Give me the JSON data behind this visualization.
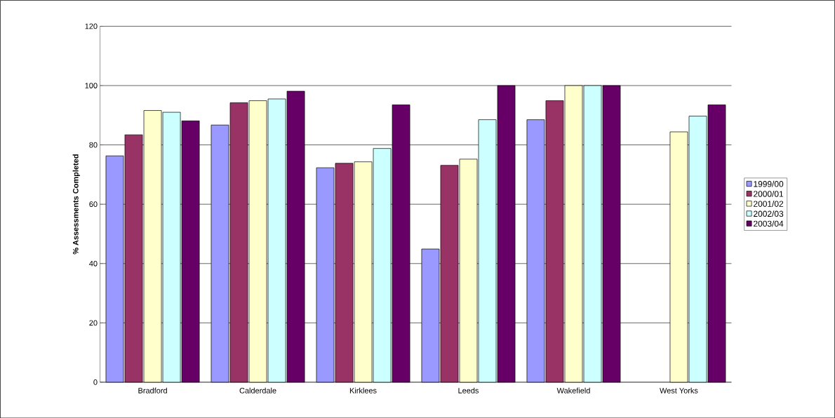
{
  "chart_data": {
    "type": "bar",
    "ylabel": "% Assessments Completed",
    "categories": [
      "Bradford",
      "Calderdale",
      "Kirklees",
      "Leeds",
      "Wakefield",
      "West Yorks"
    ],
    "series": [
      {
        "name": "1999/00",
        "color": "#9999ff",
        "values": [
          76.3,
          86.7,
          72.3,
          44.9,
          88.5,
          null
        ]
      },
      {
        "name": "2000/01",
        "color": "#993366",
        "values": [
          83.4,
          94.2,
          73.8,
          73.1,
          94.9,
          null
        ]
      },
      {
        "name": "2001/02",
        "color": "#ffffcc",
        "values": [
          91.6,
          94.9,
          74.3,
          75.2,
          100,
          84.4
        ]
      },
      {
        "name": "2002/03",
        "color": "#ccffff",
        "values": [
          91.0,
          95.5,
          78.8,
          88.5,
          100,
          89.7
        ]
      },
      {
        "name": "2003/04",
        "color": "#660066",
        "values": [
          88.1,
          98.1,
          93.5,
          100,
          100,
          93.5
        ]
      }
    ],
    "ylim": [
      0,
      120
    ],
    "yticks": [
      0,
      20,
      40,
      60,
      80,
      100,
      120
    ],
    "grid": "y",
    "legend": "right"
  }
}
